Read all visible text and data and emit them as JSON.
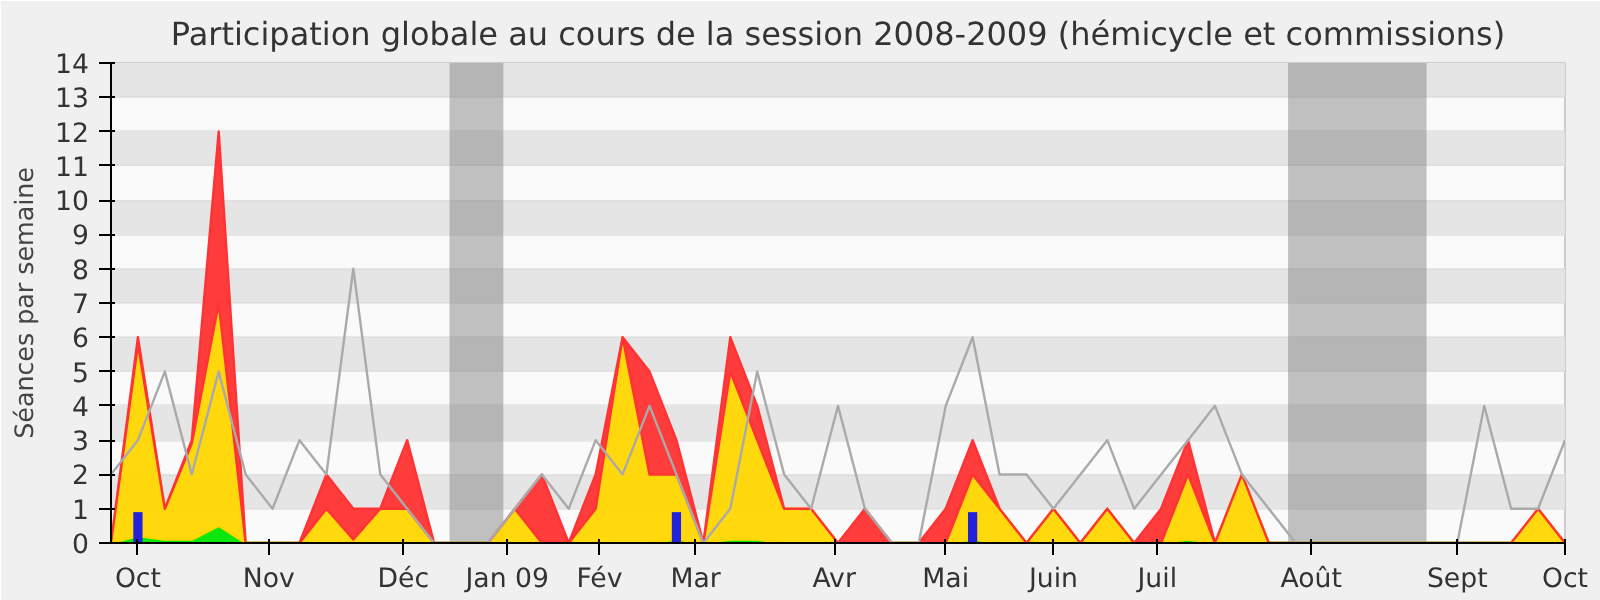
{
  "chart_data": {
    "type": "area",
    "stacked": true,
    "title": "Participation globale au cours de la session 2008-2009 (hémicycle et commissions)",
    "ylabel": "Séances par semaine",
    "x": [
      "2008-10-06",
      "2008-10-13",
      "2008-10-20",
      "2008-10-27",
      "2008-11-03",
      "2008-11-10",
      "2008-11-17",
      "2008-11-24",
      "2008-12-01",
      "2008-12-08",
      "2008-12-15",
      "2008-12-22",
      "2008-12-29",
      "2009-01-05",
      "2009-01-12",
      "2009-01-19",
      "2009-01-26",
      "2009-02-02",
      "2009-02-09",
      "2009-02-16",
      "2009-02-23",
      "2009-03-02",
      "2009-03-09",
      "2009-03-16",
      "2009-03-23",
      "2009-03-30",
      "2009-04-06",
      "2009-04-13",
      "2009-04-20",
      "2009-04-27",
      "2009-05-04",
      "2009-05-11",
      "2009-05-18",
      "2009-05-25",
      "2009-06-01",
      "2009-06-08",
      "2009-06-15",
      "2009-06-22",
      "2009-06-29",
      "2009-07-06",
      "2009-07-13",
      "2009-07-20",
      "2009-07-27",
      "2009-08-03",
      "2009-08-10",
      "2009-08-17",
      "2009-08-24",
      "2009-08-31",
      "2009-09-07",
      "2009-09-14",
      "2009-09-21",
      "2009-09-28",
      "2009-10-05",
      "2009-10-12",
      "2009-10-19"
    ],
    "series": [
      {
        "color": "#00e600",
        "values": [
          0,
          0.2,
          0.1,
          0.1,
          0.5,
          0,
          0,
          0,
          0,
          0,
          0,
          0,
          0,
          0,
          0,
          0,
          0,
          0,
          0,
          0,
          0,
          0.1,
          0,
          0.1,
          0.1,
          0,
          0,
          0,
          0,
          0,
          0,
          0,
          0.1,
          0,
          0,
          0,
          0,
          0,
          0,
          0,
          0.1,
          0,
          0,
          0,
          0,
          0,
          0,
          0,
          0,
          0,
          0,
          0,
          0,
          0,
          0
        ]
      },
      {
        "color": "#ffd700",
        "values": [
          0,
          5.6,
          0.9,
          2.8,
          6.5,
          0,
          0,
          0,
          1,
          0.1,
          1,
          1,
          0,
          0,
          0,
          1,
          0,
          0,
          1,
          6,
          2,
          1.9,
          0,
          4.9,
          2.9,
          1,
          1,
          0,
          0,
          0,
          0,
          0,
          1.9,
          1,
          0,
          1,
          0,
          1,
          0,
          0,
          1.9,
          0,
          2,
          0,
          0,
          0,
          0,
          0,
          0,
          0,
          0,
          0,
          0,
          1,
          0
        ]
      },
      {
        "color": "#ff3333",
        "values": [
          0,
          0.2,
          0,
          0.1,
          5,
          0,
          0,
          0,
          1,
          0.9,
          0,
          2,
          0,
          0,
          0,
          0,
          2,
          0,
          1,
          0,
          3,
          1,
          0,
          1,
          1,
          0,
          0,
          0,
          1,
          0,
          0,
          1,
          1,
          0,
          0,
          0,
          0,
          0,
          0,
          1,
          1,
          0,
          0,
          0,
          0,
          0,
          0,
          0,
          0,
          0,
          0,
          0,
          0,
          0,
          0
        ]
      },
      {
        "type": "line",
        "color": "#aaaaaa",
        "values": [
          2,
          3,
          5,
          2,
          5,
          2,
          1,
          3,
          2,
          8,
          2,
          1,
          0,
          0,
          0,
          1,
          2,
          1,
          3,
          2,
          4,
          2,
          0,
          1,
          5,
          2,
          1,
          4,
          1,
          0,
          0,
          4,
          6,
          2,
          2,
          1,
          2,
          3,
          1,
          2,
          3,
          4,
          2,
          1,
          0,
          0,
          0,
          0,
          0,
          0,
          0,
          4,
          1,
          1,
          3
        ]
      },
      {
        "type": "bar",
        "color": "#2222dd",
        "x": [
          "2008-10-13",
          "2009-03-02",
          "2009-05-18"
        ],
        "values": [
          0.9,
          0.9,
          0.9
        ]
      }
    ],
    "xlim": [
      "2008-10-06",
      "2009-10-19"
    ],
    "xticks": [
      {
        "value": "2008-10-13",
        "label": "Oct"
      },
      {
        "value": "2008-11-16",
        "label": "Nov"
      },
      {
        "value": "2008-12-21",
        "label": "Déc"
      },
      {
        "value": "2009-01-17",
        "label": "Jan 09"
      },
      {
        "value": "2009-02-10",
        "label": "Fév"
      },
      {
        "value": "2009-03-07",
        "label": "Mar"
      },
      {
        "value": "2009-04-12",
        "label": "Avr"
      },
      {
        "value": "2009-05-11",
        "label": "Mai"
      },
      {
        "value": "2009-06-08",
        "label": "Juin"
      },
      {
        "value": "2009-07-05",
        "label": "Juil"
      },
      {
        "value": "2009-08-14",
        "label": "Août"
      },
      {
        "value": "2009-09-21",
        "label": "Sept"
      },
      {
        "value": "2009-10-19",
        "label": "Oct"
      }
    ],
    "ylim": [
      0,
      14
    ],
    "yticks": [
      0,
      1,
      2,
      3,
      4,
      5,
      6,
      7,
      8,
      9,
      10,
      11,
      12,
      13,
      14
    ],
    "bands": [
      {
        "axis": "x",
        "from": "2009-01-02",
        "to": "2009-01-16"
      },
      {
        "axis": "x",
        "from": "2009-08-08",
        "to": "2009-09-13"
      }
    ],
    "grid": "y"
  }
}
